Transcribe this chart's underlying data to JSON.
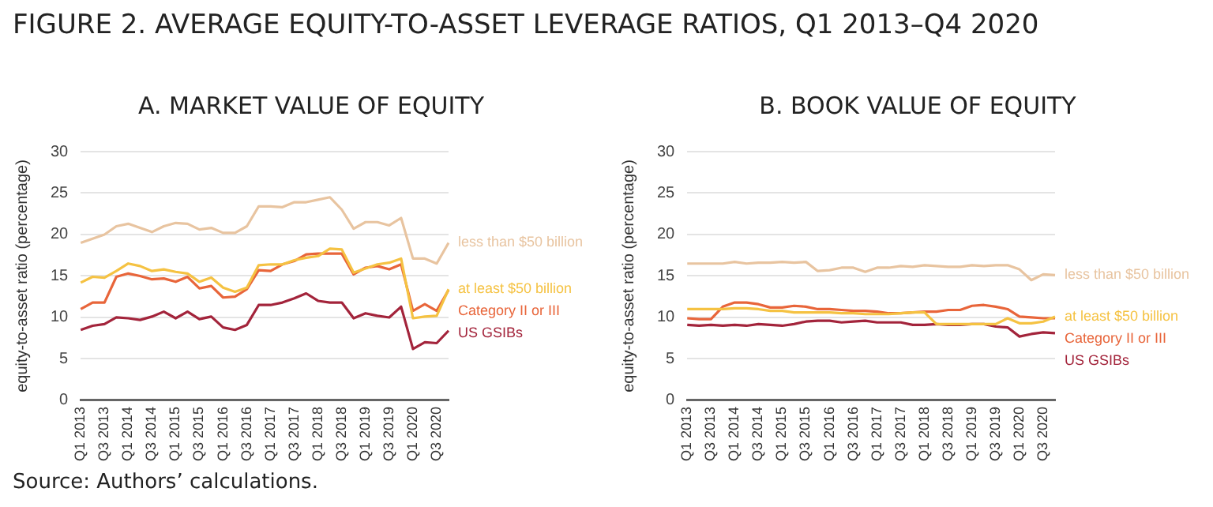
{
  "chart_data": [
    {
      "type": "line",
      "title": "FIGURE 2. AVERAGE EQUITY-TO-ASSET LEVERAGE RATIOS, Q1 2013–Q4 2020",
      "subtitle": "A. MARKET VALUE OF EQUITY",
      "ylabel": "equity-to-asset ratio (percentage)",
      "annotations": [
        "Source: Authors’ calculations."
      ],
      "categories": [
        "Q1 2013",
        null,
        "Q3 2013",
        null,
        "Q1 2014",
        null,
        "Q3 2014",
        null,
        "Q1 2015",
        null,
        "Q3 2015",
        null,
        "Q1 2016",
        null,
        "Q3 2016",
        null,
        "Q1 2017",
        null,
        "Q3 2017",
        null,
        "Q1 2018",
        null,
        "Q3 2018",
        null,
        "Q1 2019",
        null,
        "Q3 2019",
        null,
        "Q1 2020",
        null,
        "Q3 2020",
        null
      ],
      "ylim": [
        0,
        30
      ],
      "yticks": [
        0,
        5,
        10,
        15,
        20,
        25,
        30
      ],
      "grid": "y",
      "marker": "none",
      "line_style": "solid",
      "series": [
        {
          "name": "less than $50 billion",
          "color": "#e8c4a0",
          "values": [
            19,
            19.5,
            20,
            21,
            21.3,
            20.8,
            20.3,
            21,
            21.4,
            21.3,
            20.6,
            20.8,
            20.2,
            20.2,
            21,
            23.4,
            23.4,
            23.3,
            23.9,
            23.9,
            24.2,
            24.5,
            23,
            20.7,
            21.5,
            21.5,
            21.1,
            22,
            17.1,
            17.1,
            16.5,
            19
          ]
        },
        {
          "name": "at least $50 billion",
          "color": "#f5c242",
          "values": [
            14.2,
            14.9,
            14.8,
            15.6,
            16.5,
            16.2,
            15.6,
            15.8,
            15.5,
            15.3,
            14.3,
            14.8,
            13.6,
            13.1,
            13.6,
            16.3,
            16.4,
            16.4,
            16.9,
            17.2,
            17.4,
            18.3,
            18.2,
            15.4,
            15.9,
            16.4,
            16.6,
            17.1,
            9.9,
            10.1,
            10.2,
            13.4
          ]
        },
        {
          "name": "Category II or III",
          "color": "#e8653a",
          "values": [
            11,
            11.8,
            11.8,
            14.9,
            15.3,
            15,
            14.6,
            14.7,
            14.3,
            14.9,
            13.5,
            13.8,
            12.4,
            12.5,
            13.4,
            15.7,
            15.6,
            16.4,
            16.8,
            17.6,
            17.7,
            17.7,
            17.7,
            15.2,
            16,
            16.2,
            15.8,
            16.4,
            10.8,
            11.6,
            10.8,
            13.3
          ]
        },
        {
          "name": "US GSIBs",
          "color": "#a3243b",
          "values": [
            8.5,
            9,
            9.2,
            10,
            9.9,
            9.7,
            10.1,
            10.7,
            9.9,
            10.7,
            9.8,
            10.1,
            8.8,
            8.5,
            9.1,
            11.5,
            11.5,
            11.8,
            12.3,
            12.9,
            12,
            11.8,
            11.8,
            9.9,
            10.5,
            10.2,
            10,
            11.3,
            6.2,
            7,
            6.9,
            8.4
          ]
        }
      ]
    },
    {
      "type": "line",
      "title": "B. BOOK VALUE OF EQUITY",
      "ylabel": "equity-to-asset ratio (percentage)",
      "categories": [
        "Q1 2013",
        null,
        "Q3 2013",
        null,
        "Q1 2014",
        null,
        "Q3 2014",
        null,
        "Q1 2015",
        null,
        "Q3 2015",
        null,
        "Q1 2016",
        null,
        "Q3 2016",
        null,
        "Q1 2017",
        null,
        "Q3 2017",
        null,
        "Q1 2018",
        null,
        "Q3 2018",
        null,
        "Q1 2019",
        null,
        "Q3 2019",
        null,
        "Q1 2020",
        null,
        "Q3 2020",
        null
      ],
      "ylim": [
        0,
        30
      ],
      "yticks": [
        0,
        5,
        10,
        15,
        20,
        25,
        30
      ],
      "grid": "y",
      "marker": "none",
      "line_style": "solid",
      "series": [
        {
          "name": "less than $50 billion",
          "color": "#e8c4a0",
          "values": [
            16.5,
            16.5,
            16.5,
            16.5,
            16.7,
            16.5,
            16.6,
            16.6,
            16.7,
            16.6,
            16.7,
            15.6,
            15.7,
            16,
            16,
            15.5,
            16,
            16,
            16.2,
            16.1,
            16.3,
            16.2,
            16.1,
            16.1,
            16.3,
            16.2,
            16.3,
            16.3,
            15.8,
            14.5,
            15.2,
            15.1
          ]
        },
        {
          "name": "at least $50 billion",
          "color": "#f5c242",
          "values": [
            11,
            11,
            11,
            11,
            11.1,
            11.1,
            11,
            10.8,
            10.8,
            10.6,
            10.6,
            10.6,
            10.6,
            10.5,
            10.5,
            10.4,
            10.4,
            10.4,
            10.5,
            10.6,
            10.6,
            9.2,
            9.2,
            9.2,
            9.2,
            9.2,
            9.2,
            9.9,
            9.3,
            9.3,
            9.5,
            10.1
          ]
        },
        {
          "name": "Category II or III",
          "color": "#e8653a",
          "values": [
            9.9,
            9.8,
            9.8,
            11.3,
            11.8,
            11.8,
            11.6,
            11.2,
            11.2,
            11.4,
            11.3,
            11,
            11,
            10.9,
            10.8,
            10.8,
            10.7,
            10.5,
            10.5,
            10.6,
            10.7,
            10.7,
            10.9,
            10.9,
            11.4,
            11.5,
            11.3,
            11,
            10.1,
            10,
            9.9,
            9.9
          ]
        },
        {
          "name": "US GSIBs",
          "color": "#a3243b",
          "values": [
            9.1,
            9,
            9.1,
            9,
            9.1,
            9,
            9.2,
            9.1,
            9,
            9.2,
            9.5,
            9.6,
            9.6,
            9.4,
            9.5,
            9.6,
            9.4,
            9.4,
            9.4,
            9.1,
            9.1,
            9.2,
            9.1,
            9.1,
            9.2,
            9.2,
            8.9,
            8.8,
            7.7,
            8,
            8.2,
            8.1
          ]
        }
      ]
    }
  ]
}
